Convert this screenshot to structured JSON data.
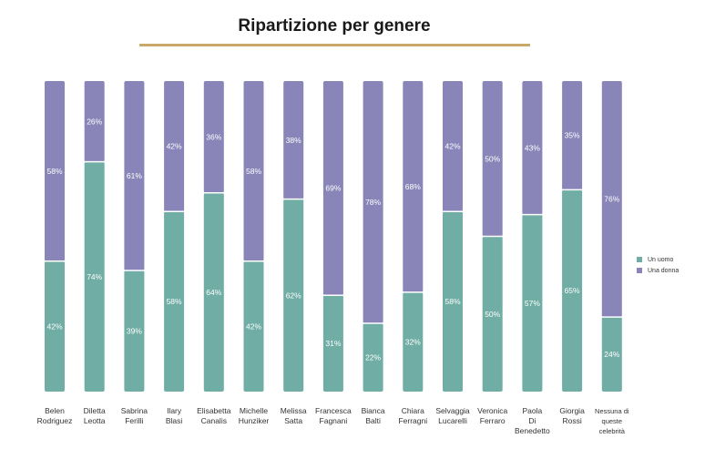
{
  "chart_data": {
    "type": "bar",
    "stacked": true,
    "percent": true,
    "title": "Ripartizione per genere",
    "categories": [
      "Belen Rodriguez",
      "Diletta Leotta",
      "Sabrina Ferilli",
      "Ilary Blasi",
      "Elisabetta Canalis",
      "Michelle Hunziker",
      "Melissa Satta",
      "Francesca Fagnani",
      "Bianca Balti",
      "Chiara Ferragni",
      "Selvaggia Lucarelli",
      "Veronica Ferraro",
      "Paola Di Benedetto",
      "Giorgia Rossi",
      "Nessuna di queste celebrità"
    ],
    "series": [
      {
        "name": "Un uomo",
        "color": "#6fada5",
        "values": [
          42,
          74,
          39,
          58,
          64,
          42,
          62,
          31,
          22,
          32,
          58,
          50,
          57,
          65,
          24
        ]
      },
      {
        "name": "Una donna",
        "color": "#8985b8",
        "values": [
          58,
          26,
          61,
          42,
          36,
          58,
          38,
          69,
          78,
          68,
          42,
          50,
          43,
          35,
          76
        ]
      }
    ],
    "ylim": [
      0,
      100
    ],
    "legend_position": "right",
    "grid": false
  }
}
